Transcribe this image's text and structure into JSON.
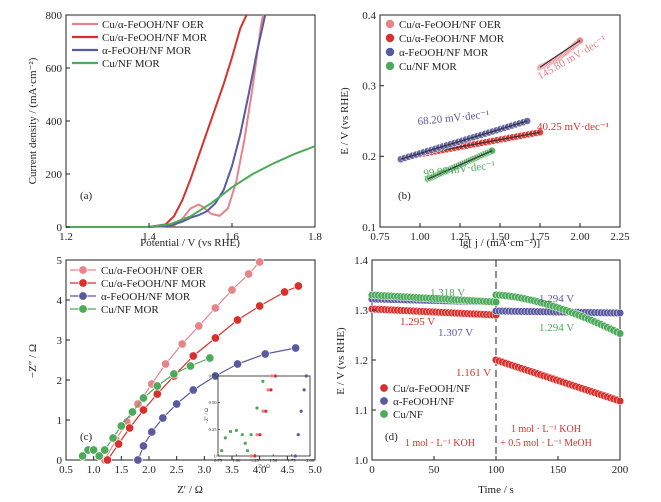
{
  "figure": {
    "panels": [
      "a",
      "b",
      "c",
      "d"
    ]
  },
  "chart_data": [
    {
      "id": "a",
      "type": "line",
      "panel_label": "(a)",
      "xlabel": "Potential / V (vs RHE)",
      "ylabel": "Current density / (mA·cm⁻²)",
      "xlim": [
        1.2,
        1.8
      ],
      "ylim": [
        0,
        800
      ],
      "xticks": [
        1.2,
        1.4,
        1.6,
        1.8
      ],
      "yticks": [
        0,
        200,
        400,
        600,
        800
      ],
      "legend_position": "top-left",
      "series": [
        {
          "name": "Cu/α-FeOOH/NF OER",
          "color": "#e8838a",
          "x": [
            1.2,
            1.4,
            1.46,
            1.48,
            1.5,
            1.52,
            1.53,
            1.55,
            1.57,
            1.59,
            1.61,
            1.63,
            1.65,
            1.67,
            1.675
          ],
          "y": [
            0,
            0,
            5,
            30,
            70,
            85,
            75,
            50,
            42,
            70,
            170,
            330,
            530,
            760,
            800
          ]
        },
        {
          "name": "Cu/α-FeOOH/NF MOR",
          "color": "#d9302c",
          "x": [
            1.2,
            1.4,
            1.44,
            1.46,
            1.48,
            1.5,
            1.52,
            1.54,
            1.56,
            1.58,
            1.6,
            1.62,
            1.635
          ],
          "y": [
            0,
            0,
            10,
            40,
            100,
            180,
            270,
            360,
            450,
            540,
            640,
            750,
            800
          ]
        },
        {
          "name": "α-FeOOH/NF MOR",
          "color": "#5a5aa0",
          "x": [
            1.2,
            1.4,
            1.45,
            1.48,
            1.5,
            1.52,
            1.54,
            1.56,
            1.58,
            1.6,
            1.62,
            1.64,
            1.66,
            1.68
          ],
          "y": [
            0,
            0,
            5,
            20,
            35,
            45,
            60,
            90,
            140,
            230,
            350,
            500,
            660,
            800
          ]
        },
        {
          "name": "Cu/NF MOR",
          "color": "#4daa5a",
          "x": [
            1.2,
            1.4,
            1.45,
            1.5,
            1.55,
            1.6,
            1.65,
            1.7,
            1.75,
            1.8
          ],
          "y": [
            0,
            0,
            10,
            40,
            90,
            150,
            200,
            240,
            275,
            305
          ]
        }
      ]
    },
    {
      "id": "b",
      "type": "scatter",
      "panel_label": "(b)",
      "xlabel": "lg[ j / (mA·cm⁻²)]",
      "ylabel": "E / V (vs RHE)",
      "xlim": [
        0.75,
        2.25
      ],
      "ylim": [
        0.1,
        0.4
      ],
      "xticks": [
        0.75,
        1.0,
        1.25,
        1.5,
        1.75,
        2.0,
        2.25
      ],
      "yticks": [
        0.1,
        0.2,
        0.3,
        0.4
      ],
      "legend_position": "top-left",
      "series": [
        {
          "name": "Cu/α-FeOOH/NF OER",
          "color": "#e8838a",
          "x_range": [
            1.75,
            2.0
          ],
          "y_range": [
            0.326,
            0.364
          ],
          "slope_label": "145.80 mV·dec⁻¹"
        },
        {
          "name": "Cu/α-FeOOH/NF MOR",
          "color": "#d9302c",
          "x_range": [
            0.95,
            1.75
          ],
          "y_range": [
            0.201,
            0.234
          ],
          "slope_label": "40.25 mV·dec⁻¹"
        },
        {
          "name": "α-FeOOH/NF MOR",
          "color": "#5a5aa0",
          "x_range": [
            0.88,
            1.67
          ],
          "y_range": [
            0.196,
            0.25
          ],
          "slope_label": "68.20 mV·dec⁻¹"
        },
        {
          "name": "Cu/NF MOR",
          "color": "#4daa5a",
          "x_range": [
            1.05,
            1.45
          ],
          "y_range": [
            0.168,
            0.208
          ],
          "slope_label": "99.90 mV·dec⁻¹"
        }
      ]
    },
    {
      "id": "c",
      "type": "scatter",
      "panel_label": "(c)",
      "xlabel": "Z′ / Ω",
      "ylabel": "−Z″ / Ω",
      "xlim": [
        0.5,
        5.0
      ],
      "ylim": [
        0,
        5
      ],
      "xticks": [
        0.5,
        1.0,
        1.5,
        2.0,
        2.5,
        3.0,
        3.5,
        4.0,
        4.5,
        5.0
      ],
      "yticks": [
        0,
        1,
        2,
        3,
        4,
        5
      ],
      "legend_position": "top-left",
      "series": [
        {
          "name": "Cu/α-FeOOH/NF OER",
          "color": "#e8838a",
          "x": [
            1.2,
            1.4,
            1.6,
            1.8,
            2.05,
            2.3,
            2.6,
            2.9,
            3.2,
            3.5,
            3.8,
            4.0
          ],
          "y": [
            0.0,
            0.5,
            0.95,
            1.4,
            1.9,
            2.4,
            2.9,
            3.35,
            3.8,
            4.25,
            4.65,
            4.95
          ]
        },
        {
          "name": "Cu/α-FeOOH/NF MOR",
          "color": "#d9302c",
          "x": [
            1.25,
            1.45,
            1.65,
            1.9,
            2.15,
            2.45,
            2.8,
            3.2,
            3.6,
            4.0,
            4.45,
            4.7
          ],
          "y": [
            0.0,
            0.4,
            0.8,
            1.25,
            1.65,
            2.1,
            2.6,
            3.05,
            3.5,
            3.85,
            4.2,
            4.35
          ]
        },
        {
          "name": "α-FeOOH/NF MOR",
          "color": "#5a5aa0",
          "x": [
            1.8,
            1.9,
            2.05,
            2.25,
            2.5,
            2.8,
            3.2,
            3.6,
            4.1,
            4.65
          ],
          "y": [
            0.0,
            0.35,
            0.7,
            1.05,
            1.4,
            1.75,
            2.1,
            2.4,
            2.65,
            2.8
          ]
        },
        {
          "name": "Cu/NF MOR",
          "color": "#4daa5a",
          "x": [
            0.8,
            0.9,
            1.0,
            1.1,
            1.2,
            1.35,
            1.5,
            1.7,
            1.9,
            2.15,
            2.45,
            2.75,
            3.1
          ],
          "y": [
            0.1,
            0.25,
            0.25,
            0.1,
            0.25,
            0.55,
            0.85,
            1.2,
            1.55,
            1.85,
            2.15,
            2.35,
            2.55
          ]
        }
      ],
      "inset": {
        "xlabel": "Z′ / Ω",
        "ylabel": "−Z″ / Ω",
        "xlim": [
          0.75,
          2.0
        ],
        "ylim": [
          0,
          0.75
        ],
        "xticks": [
          "0.75",
          "1.00",
          "1.25",
          "1.50",
          "1.75",
          "2.00"
        ],
        "yticks": [
          "0",
          "0.25",
          "0.50",
          "0.75"
        ]
      }
    },
    {
      "id": "d",
      "type": "scatter",
      "panel_label": "(d)",
      "xlabel": "Time / s",
      "ylabel": "E / V (vs RHE)",
      "xlim": [
        0,
        200
      ],
      "ylim": [
        1.0,
        1.4
      ],
      "xticks": [
        0,
        50,
        100,
        150,
        200
      ],
      "yticks": [
        1.0,
        1.1,
        1.2,
        1.3,
        1.4
      ],
      "legend_position": "bottom-left",
      "divider_x": 100,
      "condition_left": "1 mol · L⁻¹ KOH",
      "condition_right_1": "1 mol · L⁻¹ KOH",
      "condition_right_2": "+ 0.5 mol · L⁻¹ MeOH",
      "series": [
        {
          "name": "Cu/α-FeOOH/NF",
          "color": "#d9302c",
          "segments": [
            {
              "t": [
                0,
                100
              ],
              "E": [
                1.302,
                1.29
              ]
            },
            {
              "t": [
                100,
                200
              ],
              "E": [
                1.2,
                1.118
              ]
            }
          ],
          "labels": [
            "1.295 V",
            "1.161 V"
          ]
        },
        {
          "name": "α-FeOOH/NF",
          "color": "#5a5aa0",
          "segments": [
            {
              "t": [
                0,
                100
              ],
              "E": [
                1.322,
                1.316
              ]
            },
            {
              "t": [
                100,
                200
              ],
              "E": [
                1.298,
                1.294
              ]
            }
          ],
          "labels": [
            "1.307 V",
            "1.294 V"
          ]
        },
        {
          "name": "Cu/NF",
          "color": "#4daa5a",
          "segments": [
            {
              "t": [
                0,
                100
              ],
              "E": [
                1.33,
                1.316
              ]
            },
            {
              "t": [
                100,
                200
              ],
              "E": [
                1.33,
                1.253
              ]
            }
          ],
          "labels": [
            "1.318 V",
            "1.294 V"
          ]
        }
      ]
    }
  ]
}
